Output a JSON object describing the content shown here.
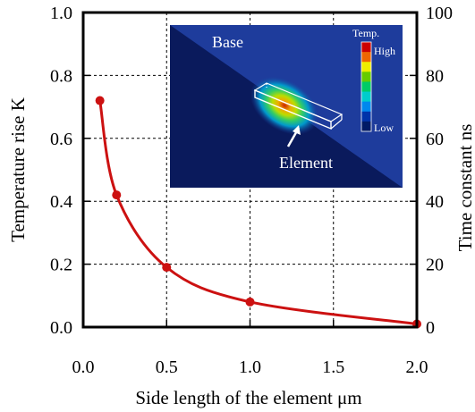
{
  "chart_data": {
    "type": "line",
    "xlabel": "Side length of the element μm",
    "ylabel": "Temperature rise K",
    "y2label": "Time constant ns",
    "xlim": [
      0.0,
      2.0
    ],
    "ylim": [
      0.0,
      1.0
    ],
    "y2lim": [
      0,
      100
    ],
    "x_ticks": [
      "0.0",
      "0.5",
      "1.0",
      "1.5",
      "2.0"
    ],
    "y_ticks": [
      "0.0",
      "0.2",
      "0.4",
      "0.6",
      "0.8",
      "1.0"
    ],
    "y2_ticks": [
      "0",
      "20",
      "40",
      "60",
      "80",
      "100"
    ],
    "grid": "dotted",
    "series": [
      {
        "color": "#cc1111",
        "x": [
          0.1,
          0.2,
          0.5,
          1.0,
          2.0
        ],
        "y": [
          0.72,
          0.42,
          0.19,
          0.08,
          0.01
        ]
      }
    ],
    "inset": {
      "base_label": "Base",
      "element_label": "Element",
      "legend_title": "Temp.",
      "legend_high": "High",
      "legend_low": "Low",
      "colors": [
        "#cc0000",
        "#ee6600",
        "#eeee00",
        "#66cc00",
        "#00cc66",
        "#00cccc",
        "#0088ee",
        "#0033aa",
        "#001a66"
      ]
    }
  }
}
